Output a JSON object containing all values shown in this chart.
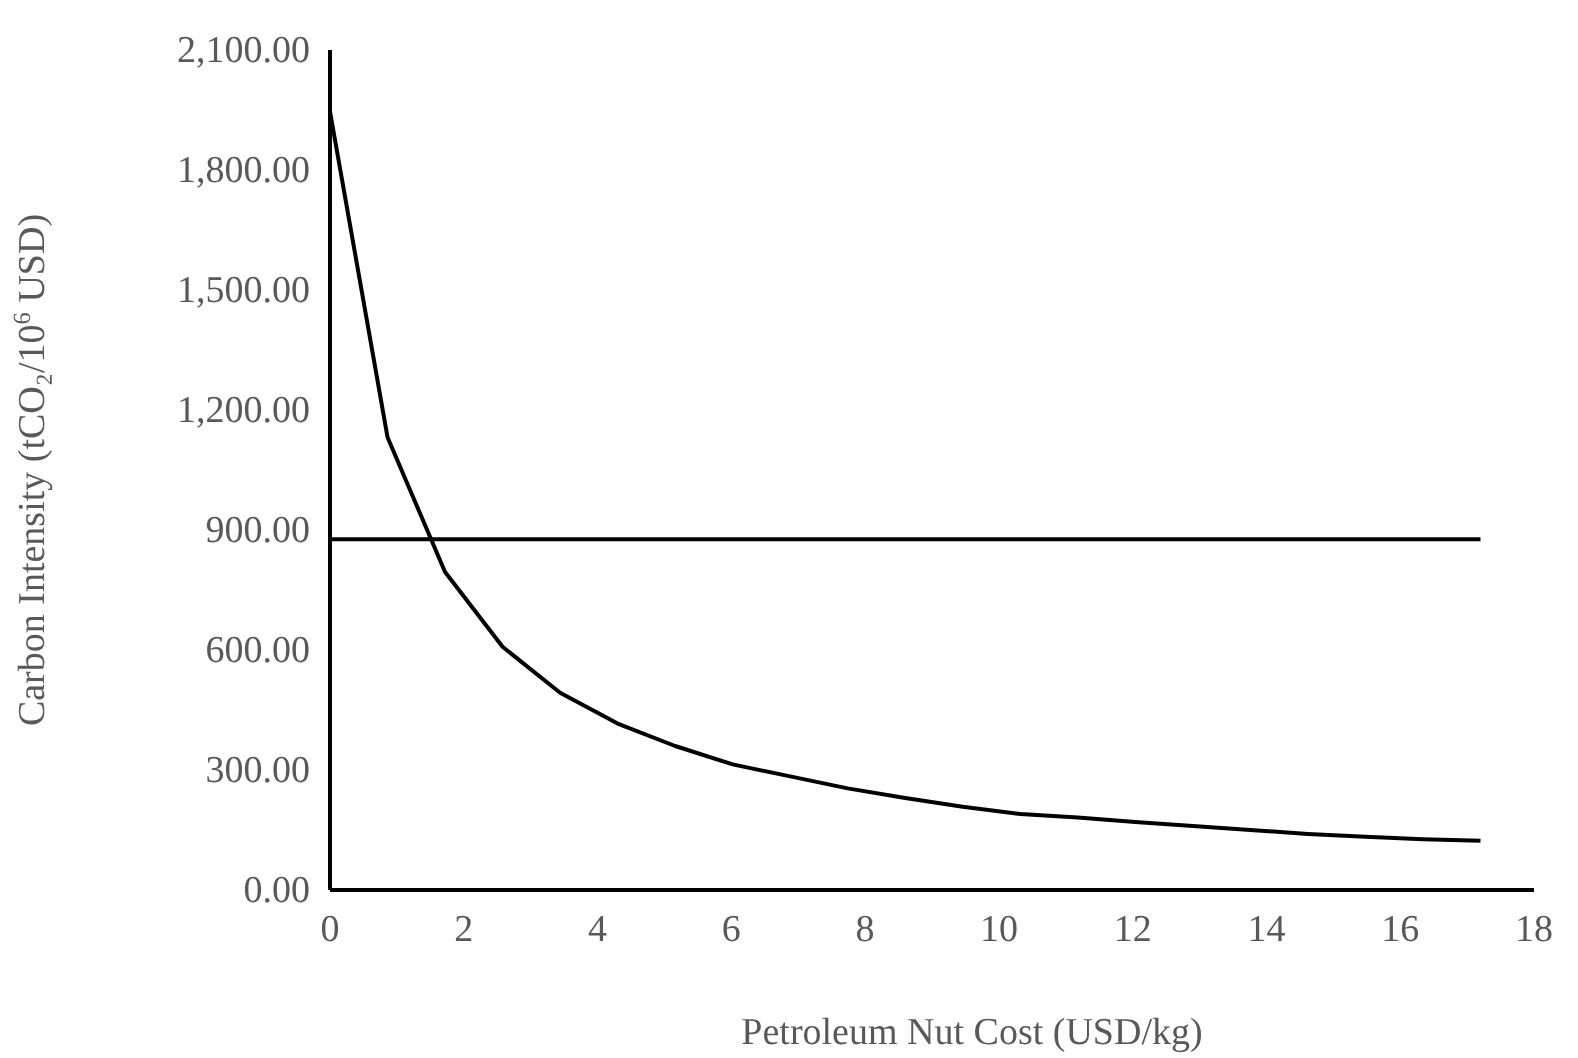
{
  "chart_data": {
    "type": "line",
    "xlabel": "Petroleum Nut Cost (USD/kg)",
    "ylabel": "Carbon Intensity (tCO₂/10$^{6}$ USD)",
    "series": [
      {
        "color": "#000000",
        "x": [
          0,
          0.86,
          1.72,
          2.58,
          3.44,
          4.3,
          5.16,
          6.02,
          6.88,
          7.74,
          8.6,
          9.46,
          10.32,
          11.18,
          12.04,
          12.9,
          13.76,
          14.62,
          15.48,
          16.34,
          17.2
        ],
        "values": [
          1946,
          1132,
          795,
          608,
          493,
          416,
          360,
          314,
          284,
          254,
          230,
          208,
          190,
          181,
          170,
          160,
          150,
          140,
          133,
          127,
          123
        ]
      },
      {
        "color": "#000000",
        "x": [
          0,
          17.2
        ],
        "values": [
          877,
          877
        ]
      }
    ],
    "xlim": [
      0,
      18
    ],
    "xticks": [
      0,
      2,
      4,
      6,
      8,
      10,
      12,
      14,
      16,
      18
    ],
    "ylim": [
      0,
      2100
    ],
    "yticks": [
      {
        "value": 0,
        "label": "0.00"
      },
      {
        "value": 300,
        "label": "300.00"
      },
      {
        "value": 600,
        "label": "600.00"
      },
      {
        "value": 900,
        "label": "900.00"
      },
      {
        "value": 1200,
        "label": "1,200.00"
      },
      {
        "value": 1500,
        "label": "1,500.00"
      },
      {
        "value": 1800,
        "label": "1,800.00"
      },
      {
        "value": 2100,
        "label": "2,100.00"
      }
    ],
    "grid": false,
    "marker": "none",
    "line_style": "solid"
  }
}
